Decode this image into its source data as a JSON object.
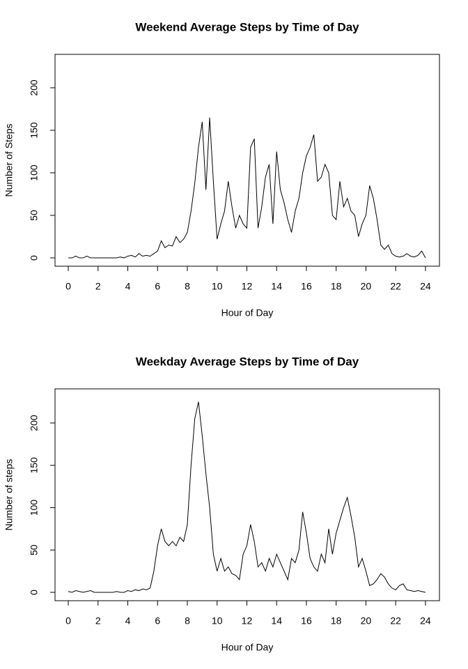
{
  "chart_data": [
    {
      "type": "line",
      "title": "Weekend Average Steps by Time of Day",
      "x_label": "Hour of Day",
      "y_label": "Number of Steps",
      "color": "#000000",
      "x": [
        0,
        0.25,
        0.5,
        0.75,
        1,
        1.25,
        1.5,
        1.75,
        2,
        2.25,
        2.5,
        2.75,
        3,
        3.25,
        3.5,
        3.75,
        4,
        4.25,
        4.5,
        4.75,
        5,
        5.25,
        5.5,
        5.75,
        6,
        6.25,
        6.5,
        6.75,
        7,
        7.25,
        7.5,
        7.75,
        8,
        8.25,
        8.5,
        8.75,
        9,
        9.25,
        9.5,
        9.75,
        10,
        10.25,
        10.5,
        10.75,
        11,
        11.25,
        11.5,
        11.75,
        12,
        12.25,
        12.5,
        12.75,
        13,
        13.25,
        13.5,
        13.75,
        14,
        14.25,
        14.5,
        14.75,
        15,
        15.25,
        15.5,
        15.75,
        16,
        16.25,
        16.5,
        16.75,
        17,
        17.25,
        17.5,
        17.75,
        18,
        18.25,
        18.5,
        18.75,
        19,
        19.25,
        19.5,
        19.75,
        20,
        20.25,
        20.5,
        20.75,
        21,
        21.25,
        21.5,
        21.75,
        22,
        22.25,
        22.5,
        22.75,
        23,
        23.25,
        23.5,
        23.75,
        24
      ],
      "values": [
        0,
        0,
        2,
        0,
        0,
        2,
        0,
        0,
        0,
        0,
        0,
        0,
        0,
        0,
        1,
        0,
        2,
        3,
        1,
        5,
        2,
        3,
        2,
        5,
        8,
        20,
        12,
        15,
        14,
        25,
        18,
        22,
        30,
        55,
        88,
        130,
        160,
        80,
        165,
        90,
        22,
        40,
        55,
        90,
        60,
        35,
        50,
        40,
        35,
        130,
        140,
        35,
        60,
        95,
        110,
        40,
        125,
        80,
        65,
        45,
        30,
        55,
        70,
        100,
        120,
        130,
        145,
        90,
        95,
        110,
        100,
        50,
        45,
        90,
        60,
        70,
        55,
        50,
        25,
        40,
        50,
        85,
        70,
        45,
        15,
        10,
        15,
        5,
        2,
        1,
        2,
        5,
        2,
        1,
        3,
        8,
        0
      ],
      "xlim": [
        -0.89,
        24.94
      ],
      "ylim": [
        -9.8,
        239.3
      ],
      "xticks": [
        0,
        2,
        4,
        6,
        8,
        10,
        12,
        14,
        16,
        18,
        20,
        22,
        24
      ],
      "yticks": [
        0,
        50,
        100,
        150,
        200
      ]
    },
    {
      "type": "line",
      "title": "Weekday Average Steps by Time of Day",
      "x_label": "Hour of Day",
      "y_label": "Number of steps",
      "color": "#000000",
      "x": [
        0,
        0.25,
        0.5,
        0.75,
        1,
        1.25,
        1.5,
        1.75,
        2,
        2.25,
        2.5,
        2.75,
        3,
        3.25,
        3.5,
        3.75,
        4,
        4.25,
        4.5,
        4.75,
        5,
        5.25,
        5.5,
        5.75,
        6,
        6.25,
        6.5,
        6.75,
        7,
        7.25,
        7.5,
        7.75,
        8,
        8.25,
        8.5,
        8.75,
        9,
        9.25,
        9.5,
        9.75,
        10,
        10.25,
        10.5,
        10.75,
        11,
        11.25,
        11.5,
        11.75,
        12,
        12.25,
        12.5,
        12.75,
        13,
        13.25,
        13.5,
        13.75,
        14,
        14.25,
        14.5,
        14.75,
        15,
        15.25,
        15.5,
        15.75,
        16,
        16.25,
        16.5,
        16.75,
        17,
        17.25,
        17.5,
        17.75,
        18,
        18.25,
        18.5,
        18.75,
        19,
        19.25,
        19.5,
        19.75,
        20,
        20.25,
        20.5,
        20.75,
        21,
        21.25,
        21.5,
        21.75,
        22,
        22.25,
        22.5,
        22.75,
        23,
        23.25,
        23.5,
        23.75,
        24
      ],
      "values": [
        1,
        0,
        2,
        1,
        0,
        1,
        2,
        0,
        0,
        0,
        0,
        0,
        0,
        1,
        0,
        0,
        2,
        1,
        3,
        2,
        4,
        3,
        5,
        25,
        55,
        75,
        60,
        55,
        60,
        55,
        65,
        60,
        80,
        150,
        205,
        225,
        185,
        140,
        100,
        45,
        25,
        40,
        25,
        30,
        22,
        20,
        15,
        45,
        55,
        80,
        60,
        30,
        35,
        25,
        40,
        30,
        45,
        35,
        25,
        15,
        40,
        35,
        50,
        95,
        70,
        40,
        30,
        25,
        45,
        35,
        75,
        45,
        70,
        85,
        100,
        112,
        90,
        65,
        30,
        40,
        25,
        8,
        10,
        15,
        22,
        18,
        10,
        5,
        3,
        8,
        10,
        3,
        2,
        1,
        2,
        1,
        0
      ],
      "xlim": [
        -0.89,
        24.94
      ],
      "ylim": [
        -9.9,
        240.3
      ],
      "xticks": [
        0,
        2,
        4,
        6,
        8,
        10,
        12,
        14,
        16,
        18,
        20,
        22,
        24
      ],
      "yticks": [
        0,
        50,
        100,
        150,
        200
      ]
    }
  ]
}
